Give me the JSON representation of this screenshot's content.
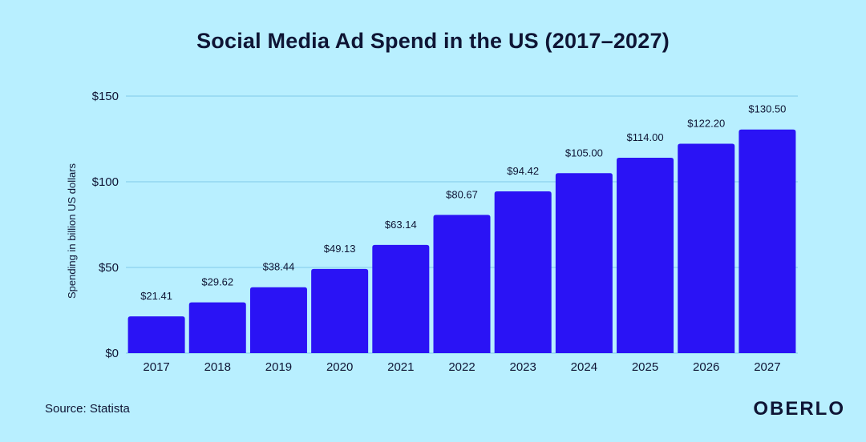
{
  "chart_data": {
    "type": "bar",
    "title": "Social Media Ad Spend in the US (2017–2027)",
    "ylabel": "Spending in billion US dollars",
    "xlabel": "",
    "categories": [
      "2017",
      "2018",
      "2019",
      "2020",
      "2021",
      "2022",
      "2023",
      "2024",
      "2025",
      "2026",
      "2027"
    ],
    "values": [
      21.41,
      29.62,
      38.44,
      49.13,
      63.14,
      80.67,
      94.42,
      105.0,
      114.0,
      122.2,
      130.5
    ],
    "value_labels": [
      "$21.41",
      "$29.62",
      "$38.44",
      "$49.13",
      "$63.14",
      "$80.67",
      "$94.42",
      "$105.00",
      "$114.00",
      "$122.20",
      "$130.50"
    ],
    "ylim": [
      0,
      150
    ],
    "yticks": [
      0,
      50,
      100,
      150
    ],
    "ytick_labels": [
      "$0",
      "$50",
      "$100",
      "$150"
    ],
    "grid": true,
    "bar_color": "#2a13f5",
    "grid_color": "#7fc8e8",
    "background": "#b8efff"
  },
  "footer": {
    "source": "Source: Statista",
    "brand": "OBERLO"
  }
}
